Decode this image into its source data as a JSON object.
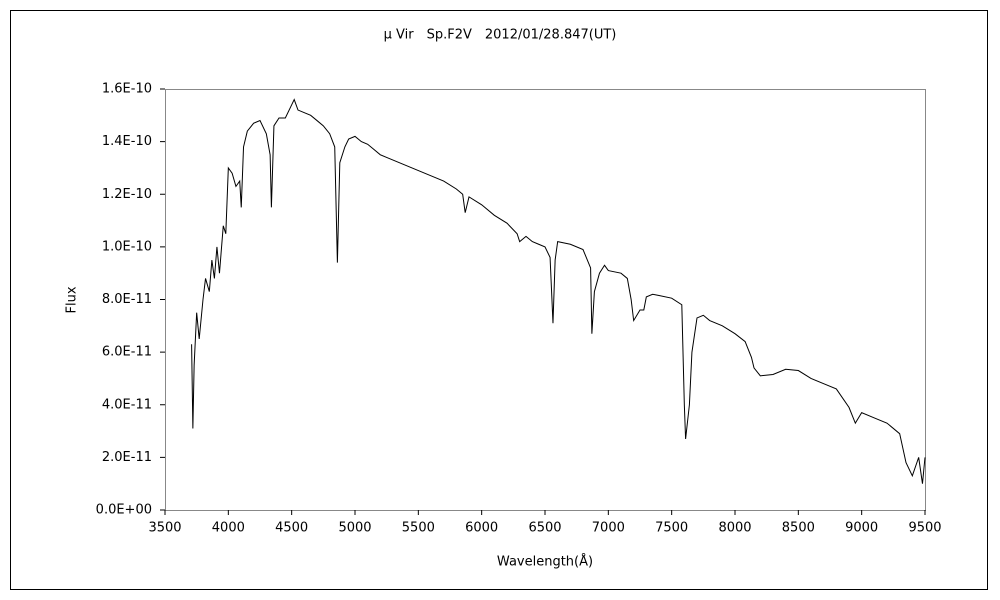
{
  "chart_data": {
    "type": "line",
    "title": "μ Vir　Sp.F2V　2012/01/28.847(UT)",
    "xlabel": "Wavelength(Å)",
    "ylabel": "Flux",
    "color": "#000000",
    "grid": false,
    "xlim": [
      3500,
      9500
    ],
    "xticks": [
      3500,
      4000,
      4500,
      5000,
      5500,
      6000,
      6500,
      7000,
      7500,
      8000,
      8500,
      9000,
      9500
    ],
    "ylim": [
      0,
      1.6e-10
    ],
    "yticks": [
      {
        "value": 0,
        "label": "0.0E+00"
      },
      {
        "value": 2e-11,
        "label": "2.0E-11"
      },
      {
        "value": 4e-11,
        "label": "4.0E-11"
      },
      {
        "value": 6e-11,
        "label": "6.0E-11"
      },
      {
        "value": 8e-11,
        "label": "8.0E-11"
      },
      {
        "value": 1e-10,
        "label": "1.0E-10"
      },
      {
        "value": 1.2e-10,
        "label": "1.2E-10"
      },
      {
        "value": 1.4e-10,
        "label": "1.4E-10"
      },
      {
        "value": 1.6e-10,
        "label": "1.6E-10"
      }
    ],
    "x": [
      3710,
      3720,
      3730,
      3750,
      3770,
      3800,
      3820,
      3850,
      3870,
      3890,
      3910,
      3930,
      3960,
      3980,
      4000,
      4030,
      4060,
      4090,
      4102,
      4120,
      4150,
      4200,
      4250,
      4300,
      4330,
      4340,
      4360,
      4400,
      4450,
      4500,
      4520,
      4550,
      4600,
      4650,
      4700,
      4750,
      4800,
      4840,
      4861,
      4880,
      4920,
      4950,
      5000,
      5050,
      5100,
      5150,
      5200,
      5250,
      5300,
      5400,
      5500,
      5600,
      5700,
      5800,
      5850,
      5870,
      5900,
      6000,
      6100,
      6200,
      6280,
      6300,
      6350,
      6400,
      6450,
      6500,
      6540,
      6563,
      6580,
      6600,
      6700,
      6800,
      6860,
      6870,
      6890,
      6930,
      6970,
      7000,
      7100,
      7150,
      7180,
      7200,
      7250,
      7280,
      7300,
      7350,
      7400,
      7500,
      7580,
      7600,
      7610,
      7640,
      7660,
      7700,
      7750,
      7800,
      7900,
      8000,
      8080,
      8130,
      8150,
      8200,
      8300,
      8400,
      8500,
      8600,
      8700,
      8800,
      8900,
      8950,
      9000,
      9100,
      9200,
      9300,
      9350,
      9400,
      9450,
      9480,
      9500
    ],
    "values": [
      6.3e-11,
      3.1e-11,
      5.5e-11,
      7.5e-11,
      6.5e-11,
      8e-11,
      8.8e-11,
      8.3e-11,
      9.5e-11,
      8.8e-11,
      1e-10,
      9e-11,
      1.08e-10,
      1.05e-10,
      1.3e-10,
      1.28e-10,
      1.23e-10,
      1.25e-10,
      1.15e-10,
      1.38e-10,
      1.44e-10,
      1.47e-10,
      1.48e-10,
      1.43e-10,
      1.35e-10,
      1.15e-10,
      1.46e-10,
      1.49e-10,
      1.49e-10,
      1.54e-10,
      1.56e-10,
      1.52e-10,
      1.51e-10,
      1.5e-10,
      1.48e-10,
      1.46e-10,
      1.43e-10,
      1.38e-10,
      9.4e-11,
      1.32e-10,
      1.38e-10,
      1.41e-10,
      1.42e-10,
      1.4e-10,
      1.39e-10,
      1.37e-10,
      1.35e-10,
      1.34e-10,
      1.33e-10,
      1.31e-10,
      1.29e-10,
      1.27e-10,
      1.25e-10,
      1.22e-10,
      1.2e-10,
      1.13e-10,
      1.19e-10,
      1.16e-10,
      1.12e-10,
      1.09e-10,
      1.05e-10,
      1.02e-10,
      1.04e-10,
      1.02e-10,
      1.01e-10,
      1e-10,
      9.6e-11,
      7.1e-11,
      9.5e-11,
      1.02e-10,
      1.01e-10,
      9.9e-11,
      9.2e-11,
      6.7e-11,
      8.3e-11,
      9e-11,
      9.3e-11,
      9.1e-11,
      9e-11,
      8.8e-11,
      8e-11,
      7.2e-11,
      7.6e-11,
      7.6e-11,
      8.1e-11,
      8.2e-11,
      8.15e-11,
      8.05e-11,
      7.8e-11,
      4e-11,
      2.7e-11,
      4e-11,
      6e-11,
      7.3e-11,
      7.4e-11,
      7.2e-11,
      7e-11,
      6.7e-11,
      6.4e-11,
      5.8e-11,
      5.4e-11,
      5.1e-11,
      5.15e-11,
      5.35e-11,
      5.3e-11,
      5e-11,
      4.8e-11,
      4.6e-11,
      3.9e-11,
      3.3e-11,
      3.7e-11,
      3.5e-11,
      3.3e-11,
      2.9e-11,
      1.8e-11,
      1.3e-11,
      2e-11,
      1e-11,
      2e-11
    ]
  }
}
